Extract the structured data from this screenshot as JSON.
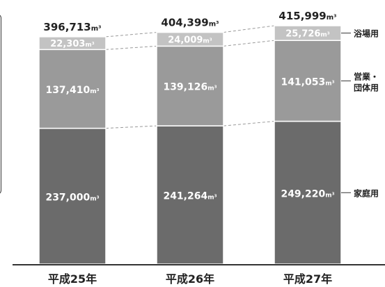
{
  "colors": {
    "household": "#6b6b6b",
    "business": "#9a9a9a",
    "bath": "#c3c3c3",
    "segment_border": "#ffffff",
    "total_text": "#222222",
    "inner_text": "#ffffff",
    "axis": "#333333",
    "connector": "#999999",
    "side_frame": "#333333"
  },
  "chart_data": {
    "type": "bar",
    "stacked": true,
    "title": "",
    "xlabel": "",
    "ylabel": "",
    "categories": [
      "平成25年",
      "平成26年",
      "平成27年"
    ],
    "series": [
      {
        "name": "家庭用",
        "values": [
          237000,
          241264,
          249220
        ],
        "labels": [
          "237,000",
          "241,264",
          "249,220"
        ]
      },
      {
        "name": "営業・\n団体用",
        "values": [
          137410,
          139126,
          141053
        ],
        "labels": [
          "137,410",
          "139,126",
          "141,053"
        ]
      },
      {
        "name": "浴場用",
        "values": [
          22303,
          24009,
          25726
        ],
        "labels": [
          "22,303",
          "24,009",
          "25,726"
        ]
      }
    ],
    "totals": [
      396713,
      404399,
      415999
    ],
    "total_labels": [
      "396,713",
      "404,399",
      "415,999"
    ],
    "unit": "m³",
    "ylim": [
      0,
      415999
    ],
    "grid": false,
    "legend_placement": "right"
  }
}
